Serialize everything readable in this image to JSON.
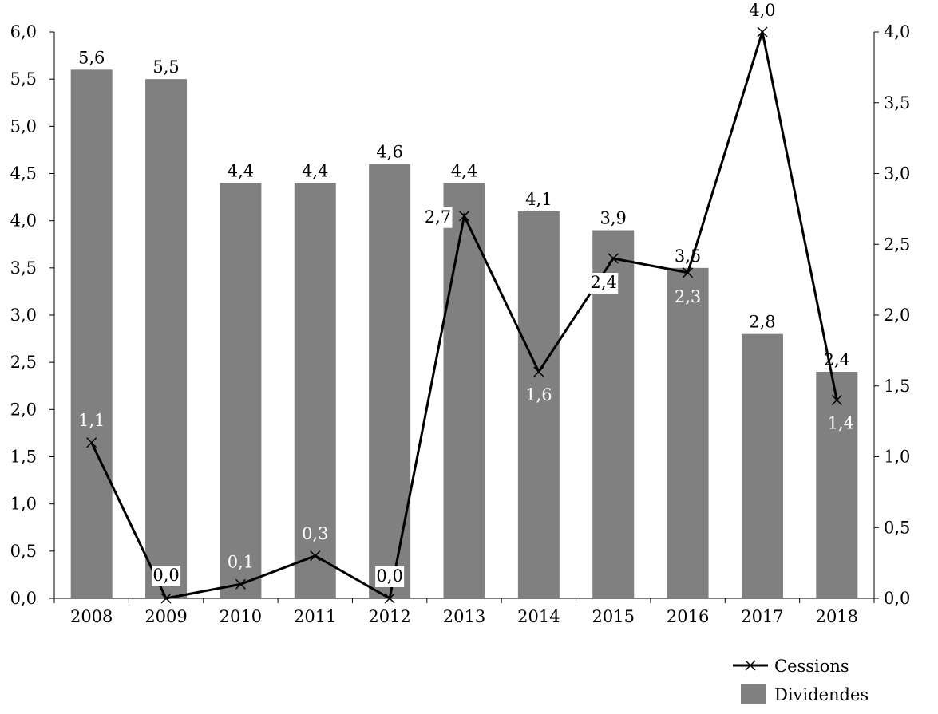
{
  "chart_data": {
    "type": "bar",
    "categories": [
      "2008",
      "2009",
      "2010",
      "2011",
      "2012",
      "2013",
      "2014",
      "2015",
      "2016",
      "2017",
      "2018"
    ],
    "series": [
      {
        "name": "Dividendes",
        "kind": "bar",
        "axis": "left",
        "color": "#808080",
        "values": [
          5.6,
          5.5,
          4.4,
          4.4,
          4.6,
          4.4,
          4.1,
          3.9,
          3.5,
          2.8,
          2.4
        ],
        "labels": [
          "5,6",
          "5,5",
          "4,4",
          "4,4",
          "4,6",
          "4,4",
          "4,1",
          "3,9",
          "3,5",
          "2,8",
          "2,4"
        ]
      },
      {
        "name": "Cessions",
        "kind": "line",
        "marker": "x",
        "axis": "right",
        "color": "#000000",
        "values": [
          1.1,
          0.0,
          0.1,
          0.3,
          0.0,
          2.7,
          1.6,
          2.4,
          2.3,
          4.0,
          1.4
        ],
        "labels": [
          "1,1",
          "0,0",
          "0,1",
          "0,3",
          "0,0",
          "2,7",
          "1,6",
          "2,4",
          "2,3",
          "4,0",
          "1,4"
        ]
      }
    ],
    "y_left": {
      "range": [
        0,
        6
      ],
      "ticks": [
        "0,0",
        "0,5",
        "1,0",
        "1,5",
        "2,0",
        "2,5",
        "3,0",
        "3,5",
        "4,0",
        "4,5",
        "5,0",
        "5,5",
        "6,0"
      ]
    },
    "y_right": {
      "range": [
        0,
        4
      ],
      "ticks": [
        "0,0",
        "0,5",
        "1,0",
        "1,5",
        "2,0",
        "2,5",
        "3,0",
        "3,5",
        "4,0"
      ]
    },
    "grid": false,
    "legend": {
      "position": "bottom-right",
      "entries": [
        "Cessions",
        "Dividendes"
      ]
    },
    "title": "",
    "xlabel": "",
    "ylabel": ""
  }
}
